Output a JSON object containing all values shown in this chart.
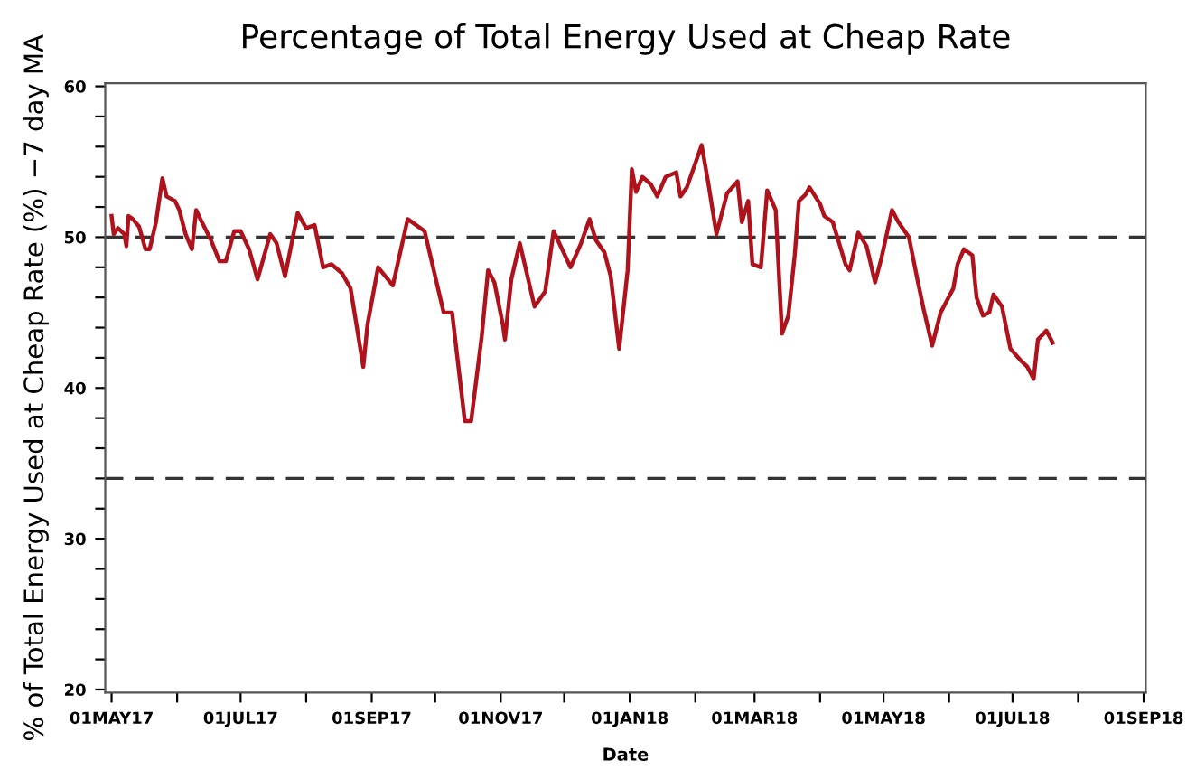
{
  "chart_data": {
    "type": "line",
    "title": "Percentage of Total Energy Used at Cheap Rate",
    "xlabel": "Date",
    "ylabel": "% of Total Energy Used at Cheap Rate (%) −7 day MA",
    "series": [
      {
        "color": "#b0121b",
        "x": [
          "2017-05-01",
          "2017-05-02",
          "2017-05-04",
          "2017-05-07",
          "2017-05-08",
          "2017-05-09",
          "2017-05-11",
          "2017-05-14",
          "2017-05-17",
          "2017-05-19",
          "2017-05-22",
          "2017-05-25",
          "2017-05-27",
          "2017-05-31",
          "2017-06-02",
          "2017-06-05",
          "2017-06-08",
          "2017-06-10",
          "2017-06-12",
          "2017-06-17",
          "2017-06-21",
          "2017-06-24",
          "2017-06-28",
          "2017-07-01",
          "2017-07-05",
          "2017-07-09",
          "2017-07-15",
          "2017-07-18",
          "2017-07-22",
          "2017-07-28",
          "2017-08-01",
          "2017-08-05",
          "2017-08-09",
          "2017-08-13",
          "2017-08-18",
          "2017-08-22",
          "2017-08-28",
          "2017-08-30",
          "2017-09-04",
          "2017-09-11",
          "2017-09-18",
          "2017-09-26",
          "2017-10-05",
          "2017-10-09",
          "2017-10-15",
          "2017-10-18",
          "2017-10-23",
          "2017-10-26",
          "2017-10-29",
          "2017-11-02",
          "2017-11-03",
          "2017-11-06",
          "2017-11-10",
          "2017-11-13",
          "2017-11-17",
          "2017-11-22",
          "2017-11-26",
          "2017-11-30",
          "2017-12-04",
          "2017-12-09",
          "2017-12-13",
          "2017-12-16",
          "2017-12-20",
          "2017-12-23",
          "2017-12-27",
          "2017-12-31",
          "2018-01-02",
          "2018-01-04",
          "2018-01-07",
          "2018-01-11",
          "2018-01-14",
          "2018-01-18",
          "2018-01-23",
          "2018-01-25",
          "2018-01-28",
          "2018-02-04",
          "2018-02-07",
          "2018-02-11",
          "2018-02-16",
          "2018-02-21",
          "2018-02-23",
          "2018-02-26",
          "2018-02-28",
          "2018-03-04",
          "2018-03-07",
          "2018-03-11",
          "2018-03-14",
          "2018-03-17",
          "2018-03-20",
          "2018-03-22",
          "2018-03-25",
          "2018-03-27",
          "2018-04-01",
          "2018-04-03",
          "2018-04-07",
          "2018-04-13",
          "2018-04-15",
          "2018-04-19",
          "2018-04-23",
          "2018-04-27",
          "2018-04-30",
          "2018-05-05",
          "2018-05-08",
          "2018-05-13",
          "2018-05-17",
          "2018-05-20",
          "2018-05-24",
          "2018-05-28",
          "2018-05-31",
          "2018-06-03",
          "2018-06-05",
          "2018-06-08",
          "2018-06-12",
          "2018-06-14",
          "2018-06-17",
          "2018-06-20",
          "2018-06-22",
          "2018-06-26",
          "2018-06-30",
          "2018-07-05",
          "2018-07-08",
          "2018-07-11",
          "2018-07-13",
          "2018-07-17",
          "2018-07-20"
        ],
        "values": [
          51.4,
          50.2,
          50.6,
          50.2,
          49.4,
          51.4,
          51.2,
          50.7,
          49.2,
          49.2,
          51.0,
          53.9,
          52.7,
          52.4,
          51.8,
          50.2,
          49.2,
          51.8,
          51.2,
          49.8,
          48.4,
          48.4,
          50.4,
          50.4,
          49.2,
          47.2,
          50.2,
          49.6,
          47.4,
          51.6,
          50.6,
          50.8,
          48.0,
          48.2,
          47.6,
          46.6,
          41.4,
          44.2,
          48.0,
          46.8,
          51.2,
          50.4,
          45.0,
          45.0,
          37.8,
          37.8,
          43.4,
          47.8,
          47.0,
          44.2,
          43.2,
          47.2,
          49.6,
          47.8,
          45.4,
          46.4,
          50.4,
          49.2,
          48.0,
          49.6,
          51.2,
          49.8,
          49.0,
          47.4,
          42.6,
          47.8,
          54.5,
          53.0,
          54.0,
          53.5,
          52.7,
          54.0,
          54.3,
          52.7,
          53.3,
          56.1,
          53.7,
          50.2,
          52.9,
          53.7,
          51.0,
          52.4,
          48.2,
          48.0,
          53.1,
          51.8,
          43.6,
          44.8,
          48.8,
          52.4,
          52.8,
          53.3,
          52.2,
          51.4,
          51.0,
          48.2,
          47.8,
          50.3,
          49.4,
          47.0,
          48.6,
          51.8,
          51.0,
          50.0,
          47.2,
          45.2,
          42.8,
          45.0,
          45.8,
          46.6,
          48.2,
          49.2,
          48.8,
          46.0,
          44.8,
          45.0,
          46.2,
          45.4,
          42.6,
          41.8,
          41.4,
          40.6,
          43.2,
          43.8,
          43.0
        ]
      }
    ],
    "xlim": [
      "2017-04-28",
      "2018-09-02"
    ],
    "xticks": [
      {
        "value": "2017-05-01",
        "label": "01MAY17"
      },
      {
        "value": "2017-06-01",
        "label": null
      },
      {
        "value": "2017-07-01",
        "label": "01JUL17"
      },
      {
        "value": "2017-08-01",
        "label": null
      },
      {
        "value": "2017-09-01",
        "label": "01SEP17"
      },
      {
        "value": "2017-10-01",
        "label": null
      },
      {
        "value": "2017-11-01",
        "label": "01NOV17"
      },
      {
        "value": "2017-12-01",
        "label": null
      },
      {
        "value": "2018-01-01",
        "label": "01JAN18"
      },
      {
        "value": "2018-02-01",
        "label": null
      },
      {
        "value": "2018-03-01",
        "label": "01MAR18"
      },
      {
        "value": "2018-04-01",
        "label": null
      },
      {
        "value": "2018-05-01",
        "label": "01MAY18"
      },
      {
        "value": "2018-06-01",
        "label": null
      },
      {
        "value": "2018-07-01",
        "label": "01JUL18"
      },
      {
        "value": "2018-08-01",
        "label": null
      },
      {
        "value": "2018-09-01",
        "label": "01SEP18"
      }
    ],
    "ylim": [
      19.8,
      60.2
    ],
    "yticks": [
      20,
      {
        "value": 22,
        "label": null
      },
      {
        "value": 24,
        "label": null
      },
      {
        "value": 26,
        "label": null
      },
      {
        "value": 28,
        "label": null
      },
      30,
      {
        "value": 32,
        "label": null
      },
      {
        "value": 34,
        "label": null
      },
      {
        "value": 36,
        "label": null
      },
      {
        "value": 38,
        "label": null
      },
      40,
      {
        "value": 42,
        "label": null
      },
      {
        "value": 44,
        "label": null
      },
      {
        "value": 46,
        "label": null
      },
      {
        "value": 48,
        "label": null
      },
      50,
      {
        "value": 52,
        "label": null
      },
      {
        "value": 54,
        "label": null
      },
      {
        "value": 56,
        "label": null
      },
      {
        "value": 58,
        "label": null
      },
      60
    ],
    "ref_lines": [
      {
        "axis": "y",
        "value": 50,
        "color": "#333333",
        "line_style": "dashed"
      },
      {
        "axis": "y",
        "value": 34,
        "color": "#333333",
        "line_style": "dashed"
      }
    ],
    "grid": false,
    "legend": false,
    "marker": "none",
    "line_style": "solid"
  }
}
